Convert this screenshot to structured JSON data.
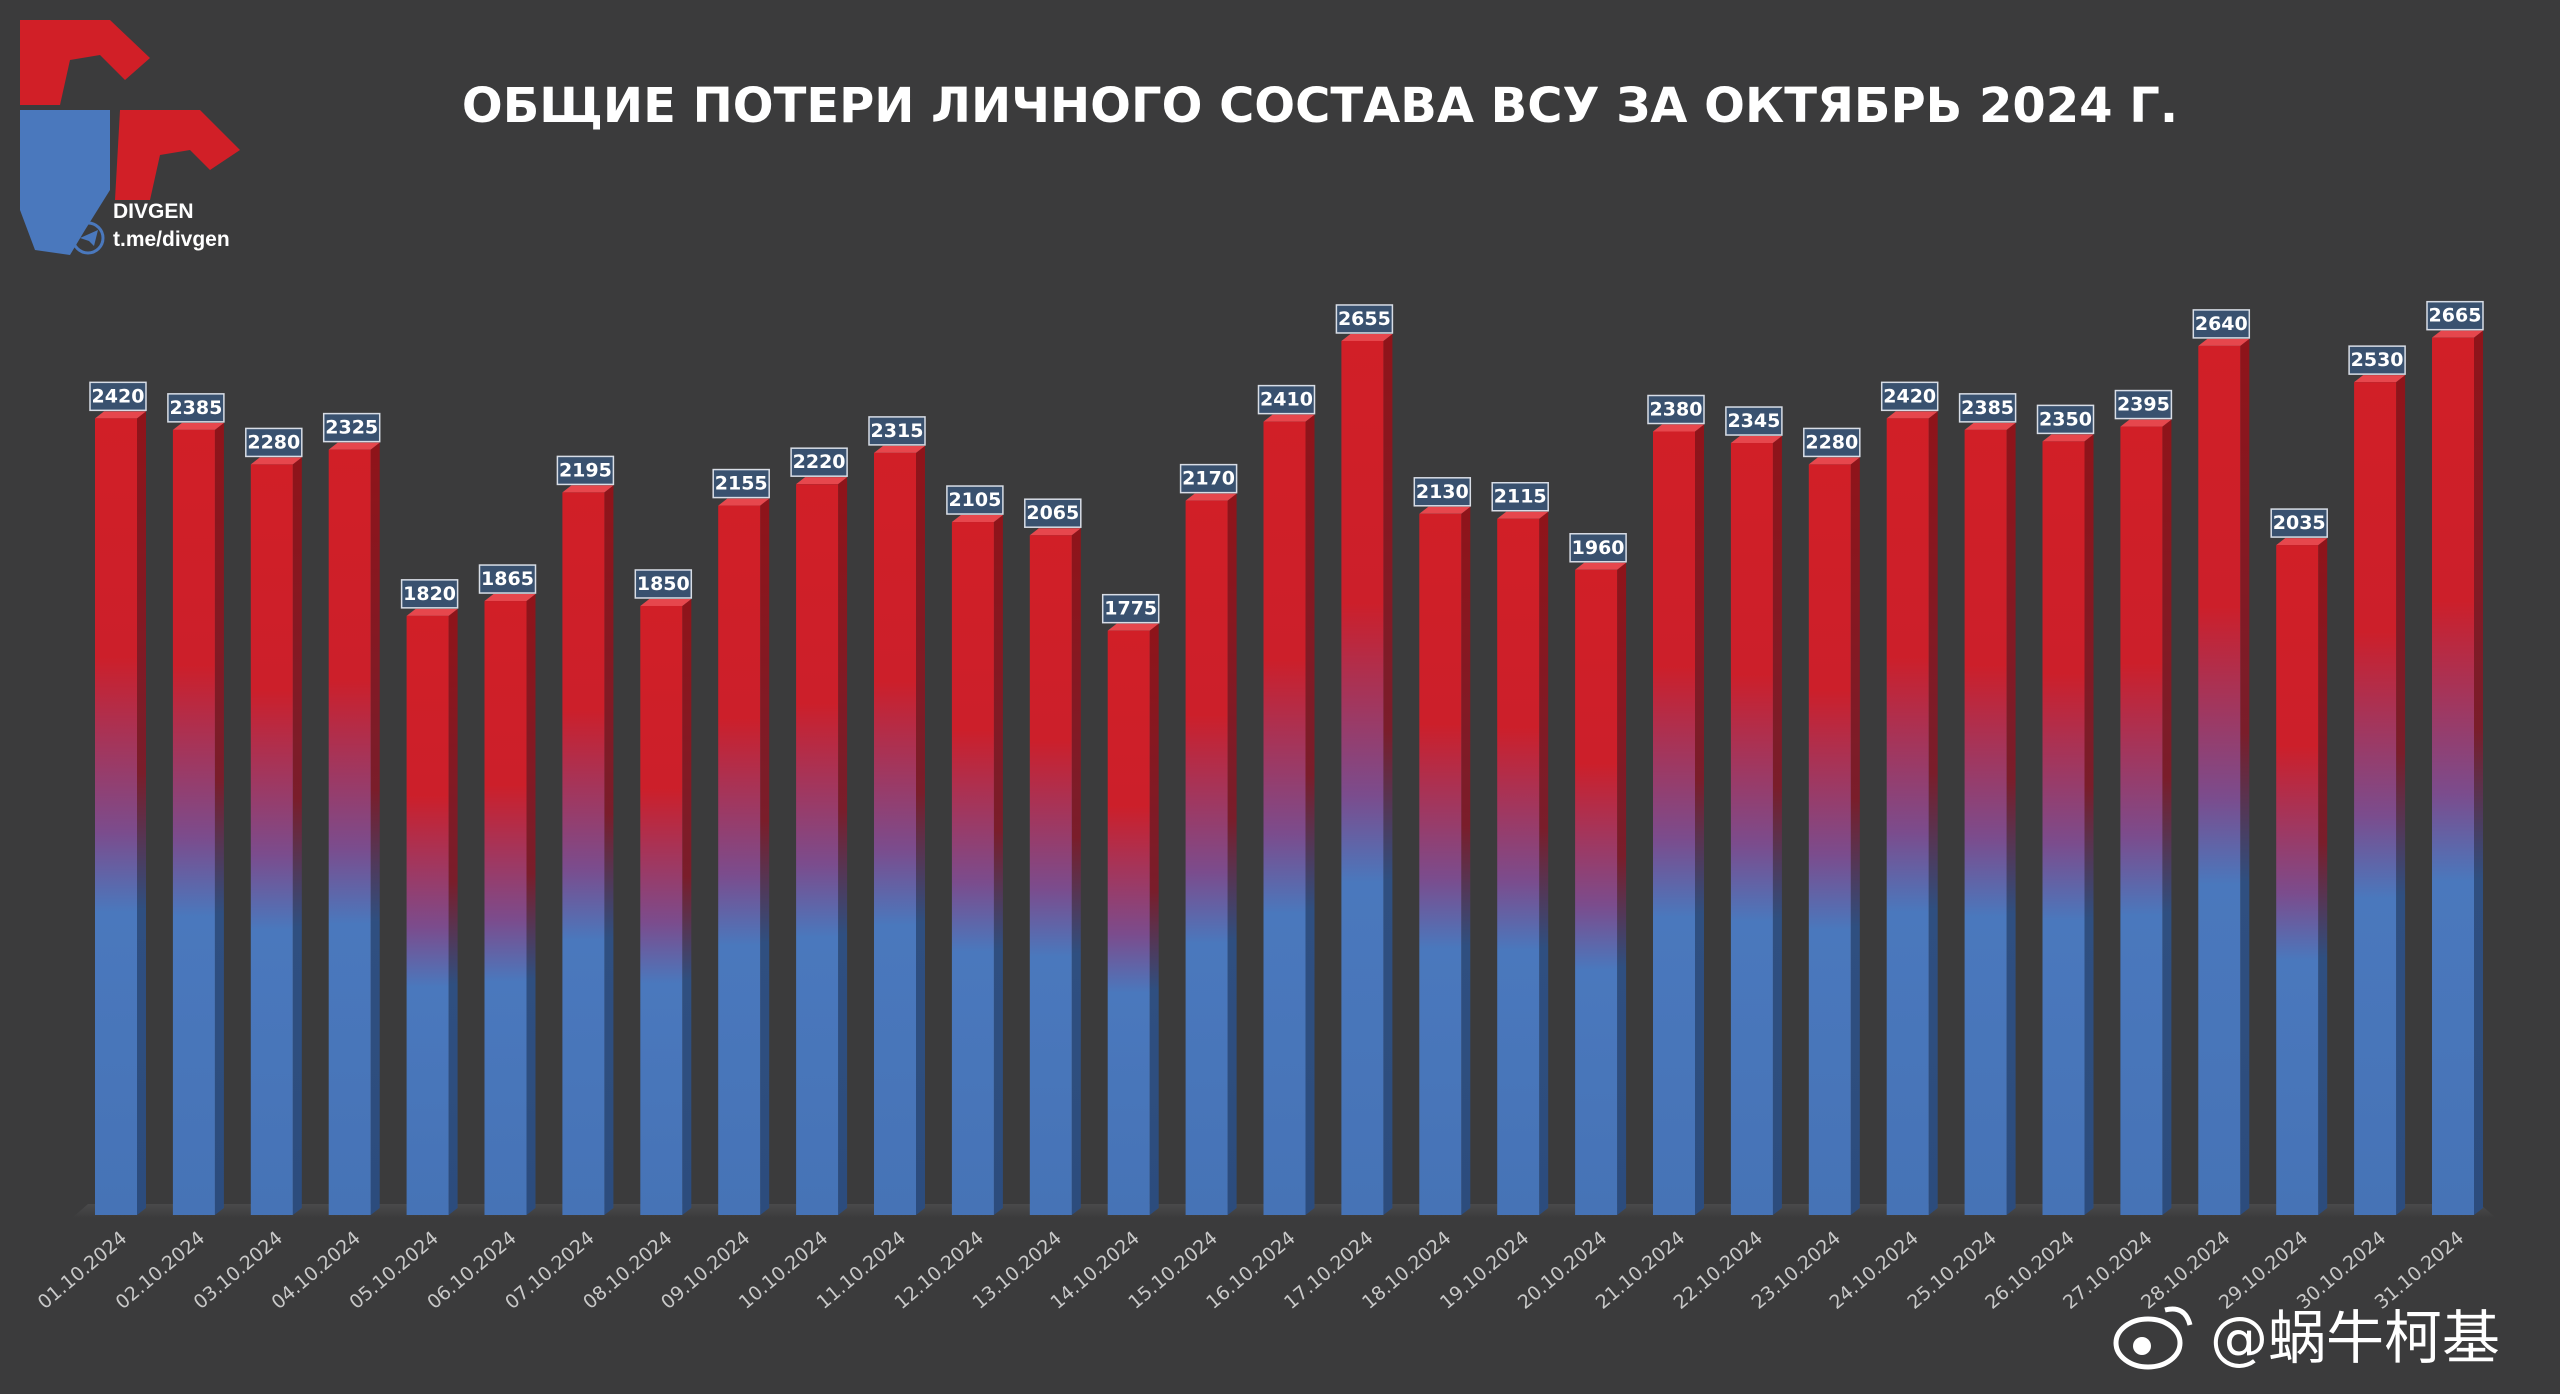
{
  "header": {
    "title": "ОБЩИЕ ПОТЕРИ ЛИЧНОГО СОСТАВА ВСУ ЗА ОКТЯБРЬ 2024 Г."
  },
  "logo": {
    "name": "DIVGEN",
    "channel": "t.me/divgen",
    "icon": "telegram-icon"
  },
  "watermark": {
    "text": "@蜗牛柯基",
    "icon": "weibo-icon"
  },
  "colors": {
    "background": "#3b3b3c",
    "bar_top": "#d11f27",
    "bar_bottom": "#4a78bd",
    "label_box": "#39516f",
    "title": "#ffffff"
  },
  "chart_data": {
    "type": "bar",
    "title": "ОБЩИЕ ПОТЕРИ ЛИЧНОГО СОСТАВА ВСУ ЗА ОКТЯБРЬ 2024 Г.",
    "xlabel": "",
    "ylabel": "",
    "categories": [
      "01.10.2024",
      "02.10.2024",
      "03.10.2024",
      "04.10.2024",
      "05.10.2024",
      "06.10.2024",
      "07.10.2024",
      "08.10.2024",
      "09.10.2024",
      "10.10.2024",
      "11.10.2024",
      "12.10.2024",
      "13.10.2024",
      "14.10.2024",
      "15.10.2024",
      "16.10.2024",
      "17.10.2024",
      "18.10.2024",
      "19.10.2024",
      "20.10.2024",
      "21.10.2024",
      "22.10.2024",
      "23.10.2024",
      "24.10.2024",
      "25.10.2024",
      "26.10.2024",
      "27.10.2024",
      "28.10.2024",
      "29.10.2024",
      "30.10.2024",
      "31.10.2024"
    ],
    "values": [
      2420,
      2385,
      2280,
      2325,
      1820,
      1865,
      2195,
      1850,
      2155,
      2220,
      2315,
      2105,
      2065,
      1775,
      2170,
      2410,
      2655,
      2130,
      2115,
      1960,
      2380,
      2345,
      2280,
      2420,
      2385,
      2350,
      2395,
      2640,
      2035,
      2530,
      2665
    ],
    "ylim": [
      0,
      2700
    ],
    "grid": false,
    "data_labels": true,
    "legend": "none"
  }
}
